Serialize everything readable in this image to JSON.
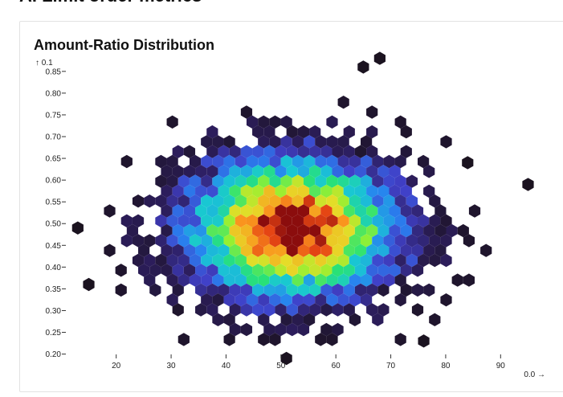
{
  "page": {
    "heading": "A. Limit order metrics"
  },
  "card": {
    "title": "Amount-Ratio Distribution"
  },
  "chart_data": {
    "type": "heatmap",
    "subtype": "hexbin",
    "title": "Amount-Ratio Distribution",
    "y_axis_label": "↑ 0.1",
    "x_axis_label": "0.0 →",
    "x_ticks": [
      20,
      30,
      40,
      50,
      60,
      70,
      80,
      90
    ],
    "y_ticks": [
      0.2,
      0.25,
      0.3,
      0.35,
      0.4,
      0.45,
      0.5,
      0.55,
      0.6,
      0.65,
      0.7,
      0.75,
      0.8,
      0.85
    ],
    "y_tick_labels": [
      "0.20",
      "0.25",
      "0.30",
      "0.35",
      "0.40",
      "0.45",
      "0.50",
      "0.55",
      "0.60",
      "0.65",
      "0.70",
      "0.75",
      "0.80",
      "0.85"
    ],
    "xlim": [
      12,
      98
    ],
    "ylim": [
      0.19,
      0.87
    ],
    "color_scale": "turbo (low = dark purple, high = red)",
    "colors": {
      "low": "#1b1320",
      "high": "#8b0d0d"
    },
    "density": {
      "x_mean": 52,
      "y_mean": 0.49,
      "x_sd": 12,
      "y_sd": 0.1
    },
    "isolated_points": [
      [
        13,
        0.49
      ],
      [
        15,
        0.36
      ],
      [
        65,
        0.86
      ],
      [
        68,
        0.88
      ],
      [
        95,
        0.59
      ],
      [
        51,
        0.19
      ],
      [
        84,
        0.64
      ],
      [
        76,
        0.23
      ]
    ],
    "grid": false,
    "legend": "none"
  }
}
